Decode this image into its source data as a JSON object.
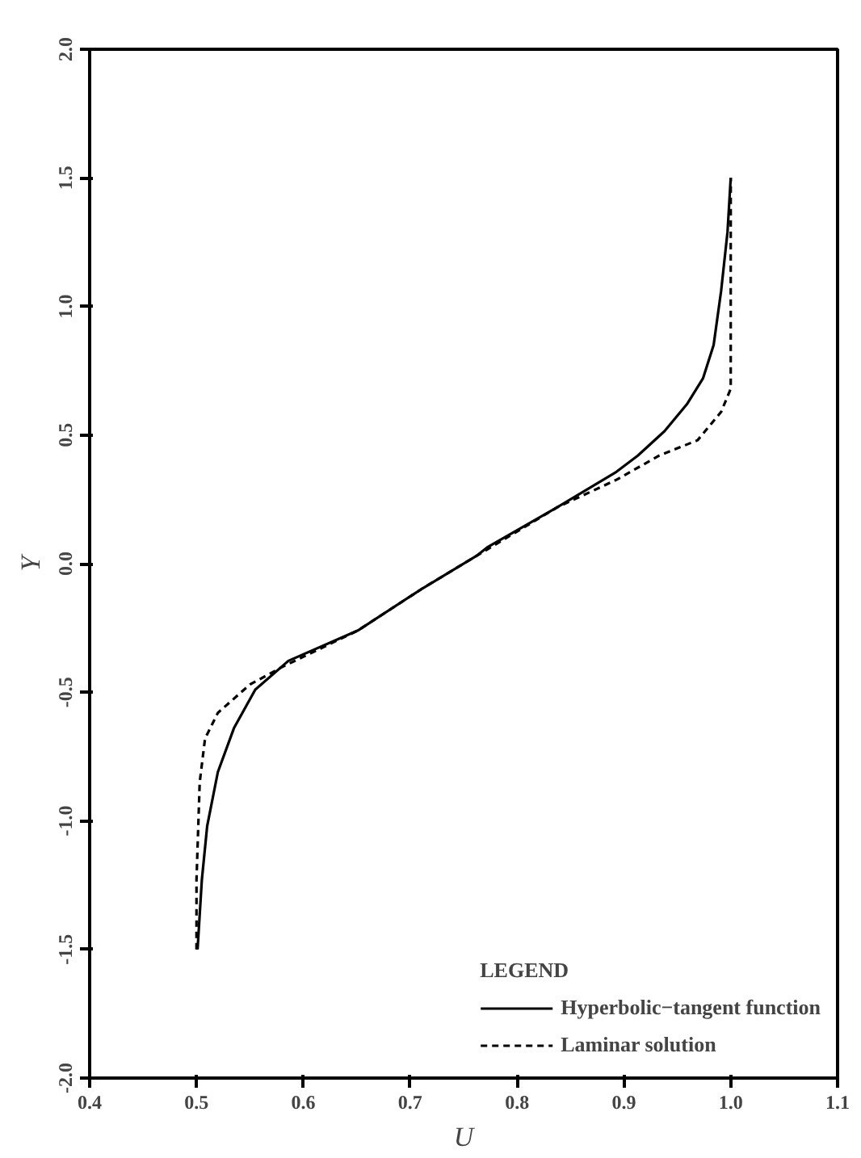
{
  "chart_data": {
    "type": "line",
    "xlabel": "U",
    "ylabel": "Y",
    "xlim": [
      0.4,
      1.1
    ],
    "ylim": [
      -2.0,
      2.0
    ],
    "xticks": [
      0.4,
      0.5,
      0.6,
      0.7,
      0.8,
      0.9,
      {
        "value": 1,
        "label": "1.0"
      },
      1.1
    ],
    "yticks": [
      {
        "value": -2,
        "label": "-2.0"
      },
      -1.5,
      {
        "value": -1,
        "label": "-1.0"
      },
      -0.5,
      {
        "value": 0,
        "label": "0.0"
      },
      0.5,
      {
        "value": 1,
        "label": "1.0"
      },
      1.5,
      {
        "value": 2,
        "label": "2.0"
      }
    ],
    "grid": false,
    "legend": "bottom right",
    "legend_title": "LEGEND",
    "marker": "none",
    "series": [
      {
        "name": "Hyperbolic−tangent function",
        "color": "#000000",
        "line_style": "solid",
        "x": [
          0.501,
          0.505,
          0.51,
          0.52,
          0.535,
          0.555,
          0.586,
          0.651,
          0.712,
          0.762,
          0.772,
          0.838,
          0.893,
          0.913,
          0.938,
          0.959,
          0.974,
          0.984,
          0.991,
          0.997,
          1.0
        ],
        "values": [
          -1.5,
          -1.23,
          -1.02,
          -0.81,
          -0.64,
          -0.49,
          -0.378,
          -0.26,
          -0.095,
          0.03,
          0.063,
          0.22,
          0.357,
          0.42,
          0.515,
          0.62,
          0.72,
          0.85,
          1.06,
          1.29,
          1.5
        ]
      },
      {
        "name": "Laminar solution",
        "color": "#000000",
        "line_style": "dashed",
        "x": [
          0.5,
          0.5,
          0.503,
          0.508,
          0.52,
          0.55,
          0.581,
          0.651,
          0.712,
          0.762,
          0.838,
          0.893,
          0.933,
          0.969,
          0.991,
          1.0,
          1.0,
          1.0
        ],
        "values": [
          -1.5,
          -1.23,
          -0.85,
          -0.68,
          -0.58,
          -0.47,
          -0.4,
          -0.26,
          -0.095,
          0.03,
          0.22,
          0.326,
          0.42,
          0.48,
          0.59,
          0.68,
          1.1,
          1.5
        ]
      }
    ]
  }
}
